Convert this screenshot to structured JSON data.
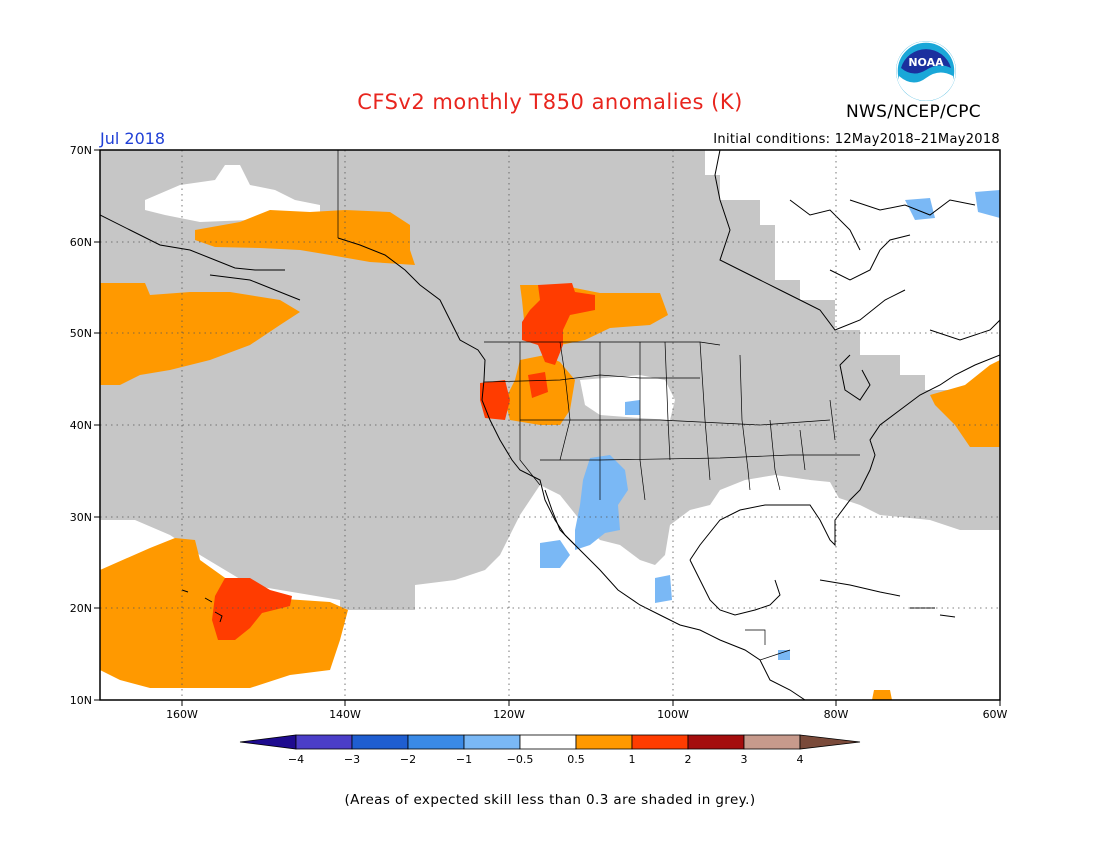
{
  "header": {
    "title": "CFSv2 monthly T850 anomalies (K)",
    "agency": "NWS/NCEP/CPC",
    "logo_text": "NOAA",
    "valid_month": "Jul 2018",
    "initial_conditions": "Initial conditions: 12May2018–21May2018"
  },
  "map": {
    "projection": "equirectangular",
    "lon_range": [
      "170W",
      "60W"
    ],
    "lat_range": [
      "10N",
      "70N"
    ],
    "lat_labels": [
      "70N",
      "60N",
      "50N",
      "40N",
      "30N",
      "20N",
      "10N"
    ],
    "lon_labels": [
      "160W",
      "140W",
      "120W",
      "100W",
      "80W",
      "60W"
    ],
    "grid": "dotted"
  },
  "legend": {
    "colors": [
      "#1e0b8f",
      "#4b3ec8",
      "#1f5ed0",
      "#3a8ae6",
      "#7ab8f5",
      "#ffffff",
      "#ff9900",
      "#ff3c00",
      "#a40d0d",
      "#c79a8c",
      "#7a4a3a"
    ],
    "labels": [
      "−4",
      "−3",
      "−2",
      "−1",
      "−0.5",
      "0.5",
      "1",
      "2",
      "3",
      "4"
    ]
  },
  "footnote": "(Areas of expected skill less than 0.3 are shaded in grey.)"
}
